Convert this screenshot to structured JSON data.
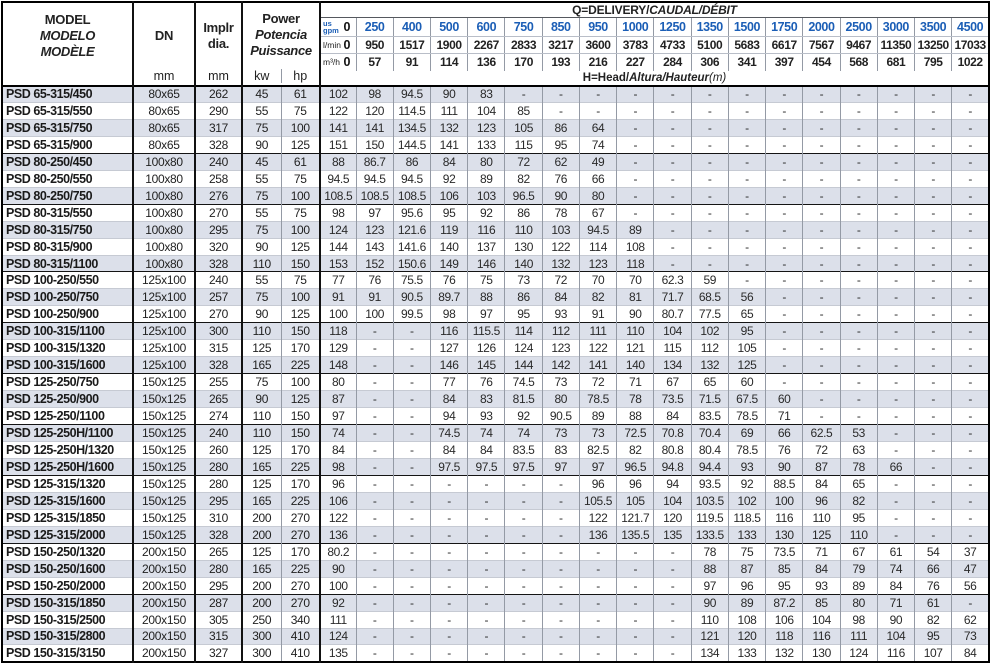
{
  "table": {
    "colors": {
      "accent_blue": "#1b5eb6",
      "stripe": "#dce0ea"
    },
    "header": {
      "model_lines": [
        "MODEL",
        "MODELO",
        "MODÈLE"
      ],
      "dn_label": "DN",
      "dn_unit": "mm",
      "implr_lines": [
        "Implr",
        "dia."
      ],
      "implr_unit": "mm",
      "power_lines": [
        "Power",
        "Potencia",
        "Puissance"
      ],
      "kw_label": "kw",
      "hp_label": "hp",
      "q_title_plain": "Q=DELIVERY/",
      "q_title_italic": "CAUDAL/DÉBIT",
      "h_title_plain": "H=Head/",
      "h_title_italic": "Altura/Hauteur",
      "h_title_suffix": "(m)",
      "flow_units": {
        "gpm_top": "us",
        "gpm_bottom": "gpm",
        "lmin": "l/min",
        "m3h": "m³/h"
      },
      "gpm": [
        "0",
        "250",
        "400",
        "500",
        "600",
        "750",
        "850",
        "950",
        "1000",
        "1250",
        "1350",
        "1500",
        "1750",
        "2000",
        "2500",
        "3000",
        "3500",
        "4500"
      ],
      "lmin": [
        "0",
        "950",
        "1517",
        "1900",
        "2267",
        "2833",
        "3217",
        "3600",
        "3783",
        "4733",
        "5100",
        "5683",
        "6617",
        "7567",
        "9467",
        "11350",
        "13250",
        "17033"
      ],
      "m3h": [
        "0",
        "57",
        "91",
        "114",
        "136",
        "170",
        "193",
        "216",
        "227",
        "284",
        "306",
        "341",
        "397",
        "454",
        "568",
        "681",
        "795",
        "1022"
      ]
    },
    "rows": [
      {
        "model": "PSD 65-315/450",
        "dn": "80x65",
        "dia": "262",
        "kw": "45",
        "hp": "61",
        "head": [
          "102",
          "98",
          "94.5",
          "90",
          "83",
          "-",
          "-",
          "-",
          "-",
          "-",
          "-",
          "-",
          "-",
          "-",
          "-",
          "-",
          "-",
          "-"
        ]
      },
      {
        "model": "PSD 65-315/550",
        "dn": "80x65",
        "dia": "290",
        "kw": "55",
        "hp": "75",
        "head": [
          "122",
          "120",
          "114.5",
          "111",
          "104",
          "85",
          "-",
          "-",
          "-",
          "-",
          "-",
          "-",
          "-",
          "-",
          "-",
          "-",
          "-",
          "-"
        ]
      },
      {
        "model": "PSD 65-315/750",
        "dn": "80x65",
        "dia": "317",
        "kw": "75",
        "hp": "100",
        "head": [
          "141",
          "141",
          "134.5",
          "132",
          "123",
          "105",
          "86",
          "64",
          "-",
          "-",
          "-",
          "-",
          "-",
          "-",
          "-",
          "-",
          "-",
          "-"
        ]
      },
      {
        "model": "PSD 65-315/900",
        "dn": "80x65",
        "dia": "328",
        "kw": "90",
        "hp": "125",
        "head": [
          "151",
          "150",
          "144.5",
          "141",
          "133",
          "115",
          "95",
          "74",
          "-",
          "-",
          "-",
          "-",
          "-",
          "-",
          "-",
          "-",
          "-",
          "-"
        ]
      },
      {
        "model": "PSD 80-250/450",
        "dn": "100x80",
        "dia": "240",
        "kw": "45",
        "hp": "61",
        "head": [
          "88",
          "86.7",
          "86",
          "84",
          "80",
          "72",
          "62",
          "49",
          "-",
          "-",
          "-",
          "-",
          "-",
          "-",
          "-",
          "-",
          "-",
          "-"
        ]
      },
      {
        "model": "PSD 80-250/550",
        "dn": "100x80",
        "dia": "258",
        "kw": "55",
        "hp": "75",
        "head": [
          "94.5",
          "94.5",
          "94.5",
          "92",
          "89",
          "82",
          "76",
          "66",
          "-",
          "-",
          "-",
          "-",
          "-",
          "-",
          "-",
          "-",
          "-",
          "-"
        ]
      },
      {
        "model": "PSD 80-250/750",
        "dn": "100x80",
        "dia": "276",
        "kw": "75",
        "hp": "100",
        "head": [
          "108.5",
          "108.5",
          "108.5",
          "106",
          "103",
          "96.5",
          "90",
          "80",
          "-",
          "-",
          "-",
          "-",
          "-",
          "-",
          "-",
          "-",
          "-",
          "-"
        ]
      },
      {
        "model": "PSD 80-315/550",
        "dn": "100x80",
        "dia": "270",
        "kw": "55",
        "hp": "75",
        "head": [
          "98",
          "97",
          "95.6",
          "95",
          "92",
          "86",
          "78",
          "67",
          "-",
          "-",
          "-",
          "-",
          "-",
          "-",
          "-",
          "-",
          "-",
          "-"
        ]
      },
      {
        "model": "PSD 80-315/750",
        "dn": "100x80",
        "dia": "295",
        "kw": "75",
        "hp": "100",
        "head": [
          "124",
          "123",
          "121.6",
          "119",
          "116",
          "110",
          "103",
          "94.5",
          "89",
          "-",
          "-",
          "-",
          "-",
          "-",
          "-",
          "-",
          "-",
          "-"
        ]
      },
      {
        "model": "PSD 80-315/900",
        "dn": "100x80",
        "dia": "320",
        "kw": "90",
        "hp": "125",
        "head": [
          "144",
          "143",
          "141.6",
          "140",
          "137",
          "130",
          "122",
          "114",
          "108",
          "-",
          "-",
          "-",
          "-",
          "-",
          "-",
          "-",
          "-",
          "-"
        ]
      },
      {
        "model": "PSD 80-315/1100",
        "dn": "100x80",
        "dia": "328",
        "kw": "110",
        "hp": "150",
        "head": [
          "153",
          "152",
          "150.6",
          "149",
          "146",
          "140",
          "132",
          "123",
          "118",
          "-",
          "-",
          "-",
          "-",
          "-",
          "-",
          "-",
          "-",
          "-"
        ]
      },
      {
        "model": "PSD 100-250/550",
        "dn": "125x100",
        "dia": "240",
        "kw": "55",
        "hp": "75",
        "head": [
          "77",
          "76",
          "75.5",
          "76",
          "75",
          "73",
          "72",
          "70",
          "70",
          "62.3",
          "59",
          "-",
          "-",
          "-",
          "-",
          "-",
          "-",
          "-"
        ]
      },
      {
        "model": "PSD 100-250/750",
        "dn": "125x100",
        "dia": "257",
        "kw": "75",
        "hp": "100",
        "head": [
          "91",
          "91",
          "90.5",
          "89.7",
          "88",
          "86",
          "84",
          "82",
          "81",
          "71.7",
          "68.5",
          "56",
          "-",
          "-",
          "-",
          "-",
          "-",
          "-"
        ]
      },
      {
        "model": "PSD 100-250/900",
        "dn": "125x100",
        "dia": "270",
        "kw": "90",
        "hp": "125",
        "head": [
          "100",
          "100",
          "99.5",
          "98",
          "97",
          "95",
          "93",
          "91",
          "90",
          "80.7",
          "77.5",
          "65",
          "-",
          "-",
          "-",
          "-",
          "-",
          "-"
        ]
      },
      {
        "model": "PSD 100-315/1100",
        "dn": "125x100",
        "dia": "300",
        "kw": "110",
        "hp": "150",
        "head": [
          "118",
          "-",
          "-",
          "116",
          "115.5",
          "114",
          "112",
          "111",
          "110",
          "104",
          "102",
          "95",
          "-",
          "-",
          "-",
          "-",
          "-",
          "-"
        ]
      },
      {
        "model": "PSD 100-315/1320",
        "dn": "125x100",
        "dia": "315",
        "kw": "125",
        "hp": "170",
        "head": [
          "129",
          "-",
          "-",
          "127",
          "126",
          "124",
          "123",
          "122",
          "121",
          "115",
          "112",
          "105",
          "-",
          "-",
          "-",
          "-",
          "-",
          "-"
        ]
      },
      {
        "model": "PSD 100-315/1600",
        "dn": "125x100",
        "dia": "328",
        "kw": "165",
        "hp": "225",
        "head": [
          "148",
          "-",
          "-",
          "146",
          "145",
          "144",
          "142",
          "141",
          "140",
          "134",
          "132",
          "125",
          "-",
          "-",
          "-",
          "-",
          "-",
          "-"
        ]
      },
      {
        "model": "PSD 125-250/750",
        "dn": "150x125",
        "dia": "255",
        "kw": "75",
        "hp": "100",
        "head": [
          "80",
          "-",
          "-",
          "77",
          "76",
          "74.5",
          "73",
          "72",
          "71",
          "67",
          "65",
          "60",
          "-",
          "-",
          "-",
          "-",
          "-",
          "-"
        ]
      },
      {
        "model": "PSD 125-250/900",
        "dn": "150x125",
        "dia": "265",
        "kw": "90",
        "hp": "125",
        "head": [
          "87",
          "-",
          "-",
          "84",
          "83",
          "81.5",
          "80",
          "78.5",
          "78",
          "73.5",
          "71.5",
          "67.5",
          "60",
          "-",
          "-",
          "-",
          "-",
          "-"
        ]
      },
      {
        "model": "PSD 125-250/1100",
        "dn": "150x125",
        "dia": "274",
        "kw": "110",
        "hp": "150",
        "head": [
          "97",
          "-",
          "-",
          "94",
          "93",
          "92",
          "90.5",
          "89",
          "88",
          "84",
          "83.5",
          "78.5",
          "71",
          "-",
          "-",
          "-",
          "-",
          "-"
        ]
      },
      {
        "model": "PSD 125-250H/1100",
        "dn": "150x125",
        "dia": "240",
        "kw": "110",
        "hp": "150",
        "head": [
          "74",
          "-",
          "-",
          "74.5",
          "74",
          "74",
          "73",
          "73",
          "72.5",
          "70.8",
          "70.4",
          "69",
          "66",
          "62.5",
          "53",
          "-",
          "-",
          "-"
        ]
      },
      {
        "model": "PSD 125-250H/1320",
        "dn": "150x125",
        "dia": "260",
        "kw": "125",
        "hp": "170",
        "head": [
          "84",
          "-",
          "-",
          "84",
          "84",
          "83.5",
          "83",
          "82.5",
          "82",
          "80.8",
          "80.4",
          "78.5",
          "76",
          "72",
          "63",
          "-",
          "-",
          "-"
        ]
      },
      {
        "model": "PSD 125-250H/1600",
        "dn": "150x125",
        "dia": "280",
        "kw": "165",
        "hp": "225",
        "head": [
          "98",
          "-",
          "-",
          "97.5",
          "97.5",
          "97.5",
          "97",
          "97",
          "96.5",
          "94.8",
          "94.4",
          "93",
          "90",
          "87",
          "78",
          "66",
          "-",
          "-"
        ]
      },
      {
        "model": "PSD 125-315/1320",
        "dn": "150x125",
        "dia": "280",
        "kw": "125",
        "hp": "170",
        "head": [
          "96",
          "-",
          "-",
          "-",
          "-",
          "-",
          "-",
          "96",
          "96",
          "94",
          "93.5",
          "92",
          "88.5",
          "84",
          "65",
          "-",
          "-",
          "-"
        ]
      },
      {
        "model": "PSD 125-315/1600",
        "dn": "150x125",
        "dia": "295",
        "kw": "165",
        "hp": "225",
        "head": [
          "106",
          "-",
          "-",
          "-",
          "-",
          "-",
          "-",
          "105.5",
          "105",
          "104",
          "103.5",
          "102",
          "100",
          "96",
          "82",
          "-",
          "-",
          "-"
        ]
      },
      {
        "model": "PSD 125-315/1850",
        "dn": "150x125",
        "dia": "310",
        "kw": "200",
        "hp": "270",
        "head": [
          "122",
          "-",
          "-",
          "-",
          "-",
          "-",
          "-",
          "122",
          "121.7",
          "120",
          "119.5",
          "118.5",
          "116",
          "110",
          "95",
          "-",
          "-",
          "-"
        ]
      },
      {
        "model": "PSD 125-315/2000",
        "dn": "150x125",
        "dia": "328",
        "kw": "200",
        "hp": "270",
        "head": [
          "136",
          "-",
          "-",
          "-",
          "-",
          "-",
          "-",
          "136",
          "135.5",
          "135",
          "133.5",
          "133",
          "130",
          "125",
          "110",
          "-",
          "-",
          "-"
        ]
      },
      {
        "model": "PSD 150-250/1320",
        "dn": "200x150",
        "dia": "265",
        "kw": "125",
        "hp": "170",
        "head": [
          "80.2",
          "-",
          "-",
          "-",
          "-",
          "-",
          "-",
          "-",
          "-",
          "-",
          "78",
          "75",
          "73.5",
          "71",
          "67",
          "61",
          "54",
          "37"
        ]
      },
      {
        "model": "PSD 150-250/1600",
        "dn": "200x150",
        "dia": "280",
        "kw": "165",
        "hp": "225",
        "head": [
          "90",
          "-",
          "-",
          "-",
          "-",
          "-",
          "-",
          "-",
          "-",
          "-",
          "88",
          "87",
          "85",
          "84",
          "79",
          "74",
          "66",
          "47"
        ]
      },
      {
        "model": "PSD 150-250/2000",
        "dn": "200x150",
        "dia": "295",
        "kw": "200",
        "hp": "270",
        "head": [
          "100",
          "-",
          "-",
          "-",
          "-",
          "-",
          "-",
          "-",
          "-",
          "-",
          "97",
          "96",
          "95",
          "93",
          "89",
          "84",
          "76",
          "56"
        ]
      },
      {
        "model": "PSD 150-315/1850",
        "dn": "200x150",
        "dia": "287",
        "kw": "200",
        "hp": "270",
        "head": [
          "92",
          "-",
          "-",
          "-",
          "-",
          "-",
          "-",
          "-",
          "-",
          "-",
          "90",
          "89",
          "87.2",
          "85",
          "80",
          "71",
          "61",
          "-"
        ]
      },
      {
        "model": "PSD 150-315/2500",
        "dn": "200x150",
        "dia": "305",
        "kw": "250",
        "hp": "340",
        "head": [
          "111",
          "-",
          "-",
          "-",
          "-",
          "-",
          "-",
          "-",
          "-",
          "-",
          "110",
          "108",
          "106",
          "104",
          "98",
          "90",
          "82",
          "62"
        ]
      },
      {
        "model": "PSD 150-315/2800",
        "dn": "200x150",
        "dia": "315",
        "kw": "300",
        "hp": "410",
        "head": [
          "124",
          "-",
          "-",
          "-",
          "-",
          "-",
          "-",
          "-",
          "-",
          "-",
          "121",
          "120",
          "118",
          "116",
          "111",
          "104",
          "95",
          "73"
        ]
      },
      {
        "model": "PSD 150-315/3150",
        "dn": "200x150",
        "dia": "327",
        "kw": "300",
        "hp": "410",
        "head": [
          "135",
          "-",
          "-",
          "-",
          "-",
          "-",
          "-",
          "-",
          "-",
          "-",
          "134",
          "133",
          "132",
          "130",
          "124",
          "116",
          "107",
          "84"
        ]
      }
    ]
  }
}
